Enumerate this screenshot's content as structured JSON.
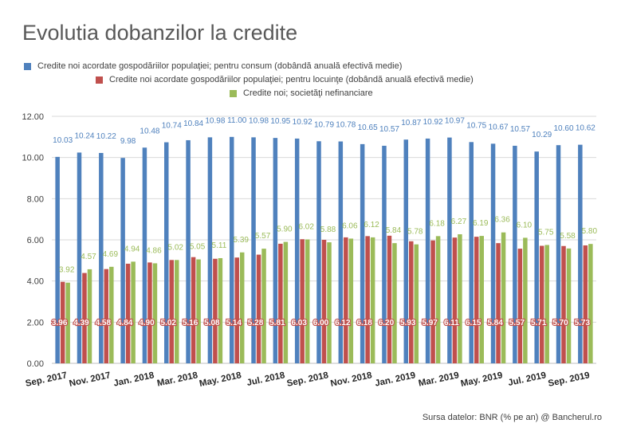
{
  "chart_data": {
    "type": "bar",
    "title": "Evolutia dobanzilor la credite",
    "source": "Sursa datelor: BNR (% pe an) @ Bancherul.ro",
    "ylim": [
      0,
      12
    ],
    "yticks": [
      "0.00",
      "2.00",
      "4.00",
      "6.00",
      "8.00",
      "10.00",
      "12.00"
    ],
    "grid": true,
    "legend_position": "top",
    "categories": [
      "Sep. 2017",
      "Oct. 2017",
      "Nov. 2017",
      "Dec. 2017",
      "Jan. 2018",
      "Feb. 2018",
      "Mar. 2018",
      "Apr. 2018",
      "May. 2018",
      "Jun. 2018",
      "Jul. 2018",
      "Aug. 2018",
      "Sep. 2018",
      "Oct. 2018",
      "Nov. 2018",
      "Dec. 2018",
      "Jan. 2019",
      "Feb. 2019",
      "Mar. 2019",
      "Apr. 2019",
      "May. 2019",
      "Jun. 2019",
      "Jul. 2019",
      "Aug. 2019",
      "Sep. 2019"
    ],
    "xtick_labels": [
      "Sep. 2017",
      "Nov. 2017",
      "Jan. 2018",
      "Mar. 2018",
      "May. 2018",
      "Jul. 2018",
      "Sep. 2018",
      "Nov. 2018",
      "Jan. 2019",
      "Mar. 2019",
      "May. 2019",
      "Jul. 2019",
      "Sep. 2019"
    ],
    "series": [
      {
        "name": "Credite noi acordate gospodăriilor populaţiei; pentru consum (dobândă anuală efectivă medie)",
        "color": "#4f81bd",
        "label_color": "#4f81bd",
        "values": [
          10.03,
          10.24,
          10.22,
          9.98,
          10.48,
          10.74,
          10.84,
          10.98,
          11.0,
          10.98,
          10.95,
          10.92,
          10.79,
          10.78,
          10.65,
          10.57,
          10.87,
          10.92,
          10.97,
          10.75,
          10.67,
          10.57,
          10.29,
          10.6,
          10.62
        ],
        "labels": [
          "10.03",
          "10.24",
          "10.22",
          "9.98",
          "10.48",
          "10.74",
          "10.84",
          "10.98",
          "11.00",
          "10.98",
          "10.95",
          "10.92",
          "10.79",
          "10.78",
          "10.65",
          "10.57",
          "10.87",
          "10.92",
          "10.97",
          "10.75",
          "10.67",
          "10.57",
          "10.29",
          "10.60",
          "10.62"
        ]
      },
      {
        "name": "Credite noi acordate gospodăriilor populaţiei; pentru locuinţe (dobândă anuală efectivă medie)",
        "color": "#c0504d",
        "label_color": "#c0504d",
        "values": [
          3.96,
          4.39,
          4.58,
          4.84,
          4.9,
          5.02,
          5.16,
          5.08,
          5.14,
          5.28,
          5.81,
          6.03,
          6.0,
          6.12,
          6.18,
          6.2,
          5.93,
          5.97,
          6.11,
          6.15,
          5.84,
          5.57,
          5.71,
          5.7,
          5.73
        ],
        "labels": [
          "3.96",
          "4.39",
          "4.58",
          "4.84",
          "4.90",
          "5.02",
          "5.16",
          "5.08",
          "5.14",
          "5.28",
          "5.81",
          "6.03",
          "6.00",
          "6.12",
          "6.18",
          "6.20",
          "5.93",
          "5.97",
          "6.11",
          "6.15",
          "5.84",
          "5.57",
          "5.71",
          "5.70",
          "5.73"
        ]
      },
      {
        "name": "Credite noi; societăţi nefinanciare",
        "color": "#9bbb59",
        "label_color": "#9bbb59",
        "values": [
          3.92,
          4.57,
          4.69,
          4.94,
          4.86,
          5.02,
          5.05,
          5.11,
          5.39,
          5.57,
          5.9,
          6.02,
          5.88,
          6.06,
          6.12,
          5.84,
          5.78,
          6.18,
          6.27,
          6.19,
          6.36,
          6.1,
          5.75,
          5.58,
          5.8
        ],
        "labels": [
          "3.92",
          "4.57",
          "4.69",
          "4.94",
          "4.86",
          "5.02",
          "5.05",
          "5.11",
          "5.39",
          "5.57",
          "5.90",
          "6.02",
          "5.88",
          "6.06",
          "6.12",
          "5.84",
          "5.78",
          "6.18",
          "6.27",
          "6.19",
          "6.36",
          "6.10",
          "5.75",
          "5.58",
          "5.80"
        ]
      }
    ]
  }
}
